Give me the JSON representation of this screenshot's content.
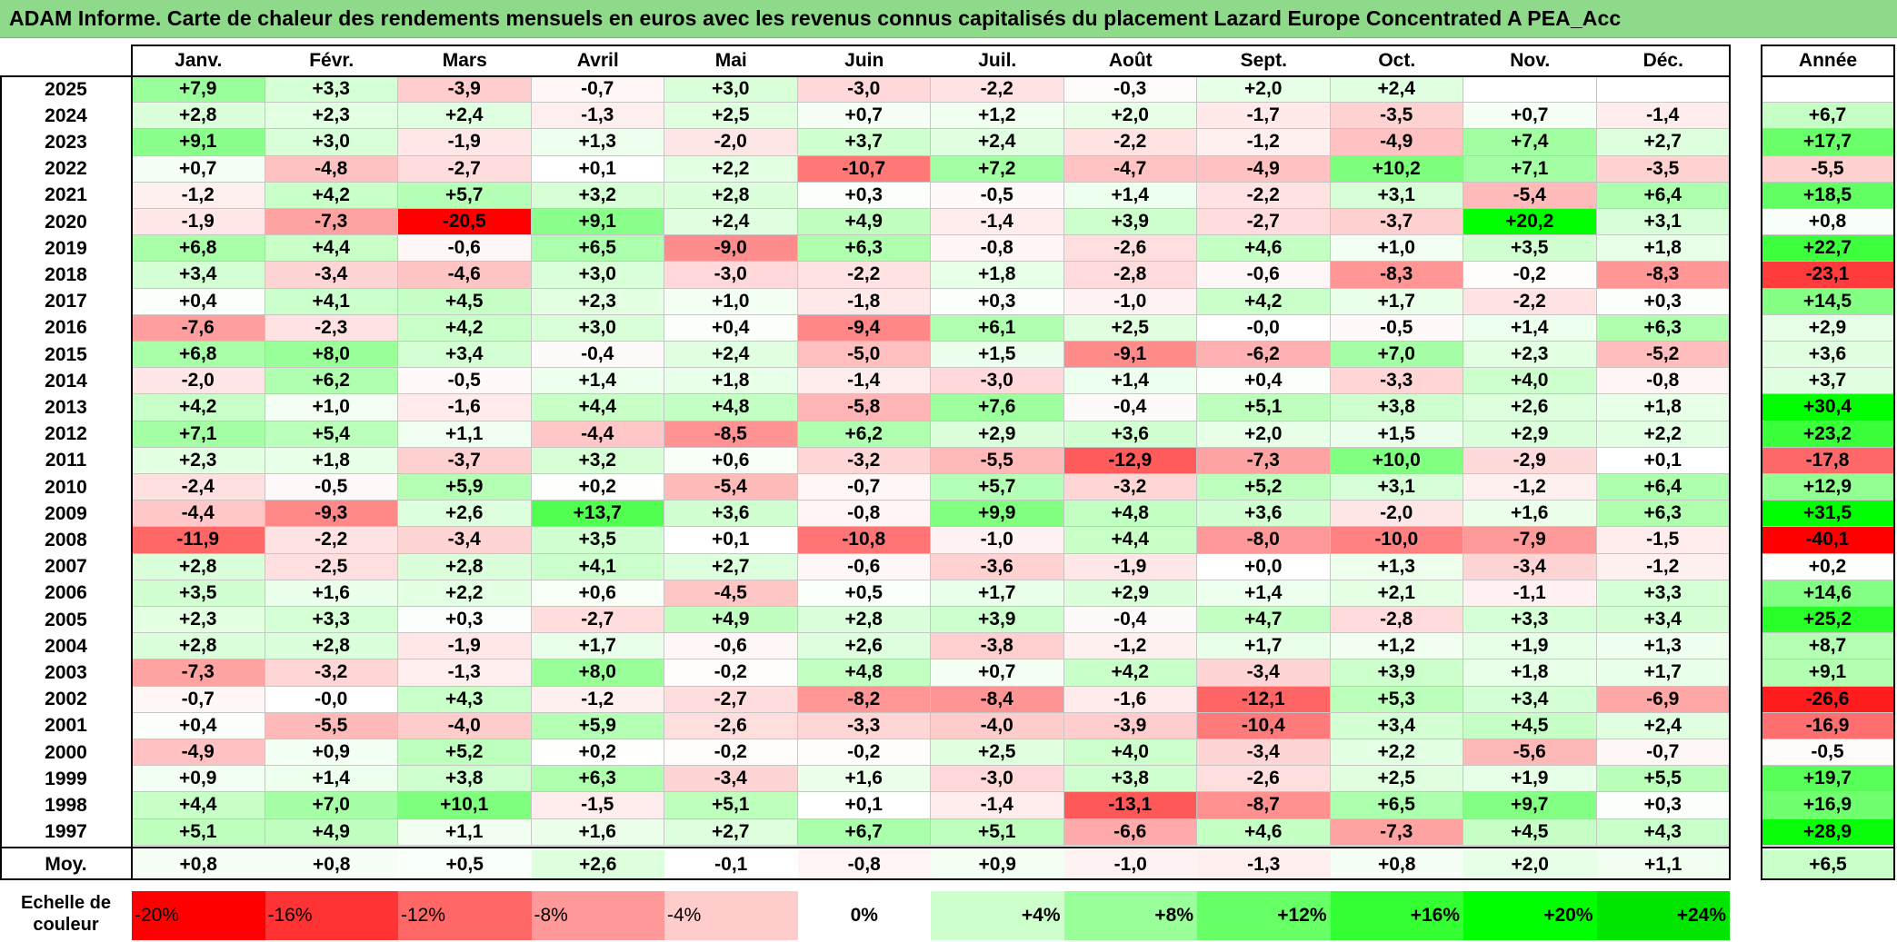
{
  "title": "ADAM Informe. Carte de chaleur des rendements mensuels en euros avec les revenus connus capitalisés du placement Lazard Europe Concentrated A PEA_Acc",
  "chart_data": {
    "type": "heatmap",
    "title": "ADAM Informe. Carte de chaleur des rendements mensuels en euros avec les revenus connus capitalisés du placement Lazard Europe Concentrated A PEA_Acc",
    "columns": [
      "Janv.",
      "Févr.",
      "Mars",
      "Avril",
      "Mai",
      "Juin",
      "Juil.",
      "Août",
      "Sept.",
      "Oct.",
      "Nov.",
      "Déc."
    ],
    "year_column": "Année",
    "rows": [
      {
        "year": "2025",
        "values": [
          "+7,9",
          "+3,3",
          "-3,9",
          "-0,7",
          "+3,0",
          "-3,0",
          "-2,2",
          "-0,3",
          "+2,0",
          "+2,4",
          "",
          ""
        ],
        "annual": ""
      },
      {
        "year": "2024",
        "values": [
          "+2,8",
          "+2,3",
          "+2,4",
          "-1,3",
          "+2,5",
          "+0,7",
          "+1,2",
          "+2,0",
          "-1,7",
          "-3,5",
          "+0,7",
          "-1,4"
        ],
        "annual": "+6,7"
      },
      {
        "year": "2023",
        "values": [
          "+9,1",
          "+3,0",
          "-1,9",
          "+1,3",
          "-2,0",
          "+3,7",
          "+2,4",
          "-2,2",
          "-1,2",
          "-4,9",
          "+7,4",
          "+2,7"
        ],
        "annual": "+17,7"
      },
      {
        "year": "2022",
        "values": [
          "+0,7",
          "-4,8",
          "-2,7",
          "+0,1",
          "+2,2",
          "-10,7",
          "+7,2",
          "-4,7",
          "-4,9",
          "+10,2",
          "+7,1",
          "-3,5"
        ],
        "annual": "-5,5"
      },
      {
        "year": "2021",
        "values": [
          "-1,2",
          "+4,2",
          "+5,7",
          "+3,2",
          "+2,8",
          "+0,3",
          "-0,5",
          "+1,4",
          "-2,2",
          "+3,1",
          "-5,4",
          "+6,4"
        ],
        "annual": "+18,5"
      },
      {
        "year": "2020",
        "values": [
          "-1,9",
          "-7,3",
          "-20,5",
          "+9,1",
          "+2,4",
          "+4,9",
          "-1,4",
          "+3,9",
          "-2,7",
          "-3,7",
          "+20,2",
          "+3,1"
        ],
        "annual": "+0,8"
      },
      {
        "year": "2019",
        "values": [
          "+6,8",
          "+4,4",
          "-0,6",
          "+6,5",
          "-9,0",
          "+6,3",
          "-0,8",
          "-2,6",
          "+4,6",
          "+1,0",
          "+3,5",
          "+1,8"
        ],
        "annual": "+22,7"
      },
      {
        "year": "2018",
        "values": [
          "+3,4",
          "-3,4",
          "-4,6",
          "+3,0",
          "-3,0",
          "-2,2",
          "+1,8",
          "-2,8",
          "-0,6",
          "-8,3",
          "-0,2",
          "-8,3"
        ],
        "annual": "-23,1"
      },
      {
        "year": "2017",
        "values": [
          "+0,4",
          "+4,1",
          "+4,5",
          "+2,3",
          "+1,0",
          "-1,8",
          "+0,3",
          "-1,0",
          "+4,2",
          "+1,7",
          "-2,2",
          "+0,3"
        ],
        "annual": "+14,5"
      },
      {
        "year": "2016",
        "values": [
          "-7,6",
          "-2,3",
          "+4,2",
          "+3,0",
          "+0,4",
          "-9,4",
          "+6,1",
          "+2,5",
          "-0,0",
          "-0,5",
          "+1,4",
          "+6,3"
        ],
        "annual": "+2,9"
      },
      {
        "year": "2015",
        "values": [
          "+6,8",
          "+8,0",
          "+3,4",
          "-0,4",
          "+2,4",
          "-5,0",
          "+1,5",
          "-9,1",
          "-6,2",
          "+7,0",
          "+2,3",
          "-5,2"
        ],
        "annual": "+3,6"
      },
      {
        "year": "2014",
        "values": [
          "-2,0",
          "+6,2",
          "-0,5",
          "+1,4",
          "+1,8",
          "-1,4",
          "-3,0",
          "+1,4",
          "+0,4",
          "-3,3",
          "+4,0",
          "-0,8"
        ],
        "annual": "+3,7"
      },
      {
        "year": "2013",
        "values": [
          "+4,2",
          "+1,0",
          "-1,6",
          "+4,4",
          "+4,8",
          "-5,8",
          "+7,6",
          "-0,4",
          "+5,1",
          "+3,8",
          "+2,6",
          "+1,8"
        ],
        "annual": "+30,4"
      },
      {
        "year": "2012",
        "values": [
          "+7,1",
          "+5,4",
          "+1,1",
          "-4,4",
          "-8,5",
          "+6,2",
          "+2,9",
          "+3,6",
          "+2,0",
          "+1,5",
          "+2,9",
          "+2,2"
        ],
        "annual": "+23,2"
      },
      {
        "year": "2011",
        "values": [
          "+2,3",
          "+1,8",
          "-3,7",
          "+3,2",
          "+0,6",
          "-3,2",
          "-5,5",
          "-12,9",
          "-7,3",
          "+10,0",
          "-2,9",
          "+0,1"
        ],
        "annual": "-17,8"
      },
      {
        "year": "2010",
        "values": [
          "-2,4",
          "-0,5",
          "+5,9",
          "+0,2",
          "-5,4",
          "-0,7",
          "+5,7",
          "-3,2",
          "+5,2",
          "+3,1",
          "-1,2",
          "+6,4"
        ],
        "annual": "+12,9"
      },
      {
        "year": "2009",
        "values": [
          "-4,4",
          "-9,3",
          "+2,6",
          "+13,7",
          "+3,6",
          "-0,8",
          "+9,9",
          "+4,8",
          "+3,6",
          "-2,0",
          "+1,6",
          "+6,3"
        ],
        "annual": "+31,5"
      },
      {
        "year": "2008",
        "values": [
          "-11,9",
          "-2,2",
          "-3,4",
          "+3,5",
          "+0,1",
          "-10,8",
          "-1,0",
          "+4,4",
          "-8,0",
          "-10,0",
          "-7,9",
          "-1,5"
        ],
        "annual": "-40,1"
      },
      {
        "year": "2007",
        "values": [
          "+2,8",
          "-2,5",
          "+2,8",
          "+4,1",
          "+2,7",
          "-0,6",
          "-3,6",
          "-1,9",
          "+0,0",
          "+1,3",
          "-3,4",
          "-1,2"
        ],
        "annual": "+0,2"
      },
      {
        "year": "2006",
        "values": [
          "+3,5",
          "+1,6",
          "+2,2",
          "+0,6",
          "-4,5",
          "+0,5",
          "+1,7",
          "+2,9",
          "+1,4",
          "+2,1",
          "-1,1",
          "+3,3"
        ],
        "annual": "+14,6"
      },
      {
        "year": "2005",
        "values": [
          "+2,3",
          "+3,3",
          "+0,3",
          "-2,7",
          "+4,9",
          "+2,8",
          "+3,9",
          "-0,4",
          "+4,7",
          "-2,8",
          "+3,3",
          "+3,4"
        ],
        "annual": "+25,2"
      },
      {
        "year": "2004",
        "values": [
          "+2,8",
          "+2,8",
          "-1,9",
          "+1,7",
          "-0,6",
          "+2,6",
          "-3,8",
          "-1,2",
          "+1,7",
          "+1,2",
          "+1,9",
          "+1,3"
        ],
        "annual": "+8,7"
      },
      {
        "year": "2003",
        "values": [
          "-7,3",
          "-3,2",
          "-1,3",
          "+8,0",
          "-0,2",
          "+4,8",
          "+0,7",
          "+4,2",
          "-3,4",
          "+3,9",
          "+1,8",
          "+1,7"
        ],
        "annual": "+9,1"
      },
      {
        "year": "2002",
        "values": [
          "-0,7",
          "-0,0",
          "+4,3",
          "-1,2",
          "-2,7",
          "-8,2",
          "-8,4",
          "-1,6",
          "-12,1",
          "+5,3",
          "+3,4",
          "-6,9"
        ],
        "annual": "-26,6"
      },
      {
        "year": "2001",
        "values": [
          "+0,4",
          "-5,5",
          "-4,0",
          "+5,9",
          "-2,6",
          "-3,3",
          "-4,0",
          "-3,9",
          "-10,4",
          "+3,4",
          "+4,5",
          "+2,4"
        ],
        "annual": "-16,9"
      },
      {
        "year": "2000",
        "values": [
          "-4,9",
          "+0,9",
          "+5,2",
          "+0,2",
          "-0,2",
          "-0,2",
          "+2,5",
          "+4,0",
          "-3,4",
          "+2,2",
          "-5,6",
          "-0,7"
        ],
        "annual": "-0,5"
      },
      {
        "year": "1999",
        "values": [
          "+0,9",
          "+1,4",
          "+3,8",
          "+6,3",
          "-3,4",
          "+1,6",
          "-3,0",
          "+3,8",
          "-2,6",
          "+2,5",
          "+1,9",
          "+5,5"
        ],
        "annual": "+19,7"
      },
      {
        "year": "1998",
        "values": [
          "+4,4",
          "+7,0",
          "+10,1",
          "-1,5",
          "+5,1",
          "+0,1",
          "-1,4",
          "-13,1",
          "-8,7",
          "+6,5",
          "+9,7",
          "+0,3"
        ],
        "annual": "+16,9"
      },
      {
        "year": "1997",
        "values": [
          "+5,1",
          "+4,9",
          "+1,1",
          "+1,6",
          "+2,7",
          "+6,7",
          "+5,1",
          "-6,6",
          "+4,6",
          "-7,3",
          "+4,5",
          "+4,3"
        ],
        "annual": "+28,9"
      }
    ],
    "average": {
      "label": "Moy.",
      "values": [
        "+0,8",
        "+0,8",
        "+0,5",
        "+2,6",
        "-0,1",
        "-0,8",
        "+0,9",
        "-1,0",
        "-1,3",
        "+0,8",
        "+2,0",
        "+1,1"
      ],
      "annual": "+6,5"
    },
    "scale": {
      "label_line1": "Echelle de",
      "label_line2": "couleur",
      "steps": [
        {
          "label": "-20%",
          "color": "#ff0000"
        },
        {
          "label": "-16%",
          "color": "#ff3333"
        },
        {
          "label": "-12%",
          "color": "#ff6666"
        },
        {
          "label": "-8%",
          "color": "#ff9999"
        },
        {
          "label": "-4%",
          "color": "#ffcccc"
        },
        {
          "label": "0%",
          "color": "#ffffff"
        },
        {
          "label": "+4%",
          "color": "#ccffcc"
        },
        {
          "label": "+8%",
          "color": "#99ff99"
        },
        {
          "label": "+12%",
          "color": "#66ff66"
        },
        {
          "label": "+16%",
          "color": "#33ff33"
        },
        {
          "label": "+20%",
          "color": "#00ff00"
        },
        {
          "label": "+24%",
          "color": "#00e600"
        }
      ]
    },
    "colors": {
      "title_band": "#8fd98b",
      "negative_max": "#ff0000",
      "neutral": "#ffffff",
      "positive_max": "#00ff00"
    }
  }
}
